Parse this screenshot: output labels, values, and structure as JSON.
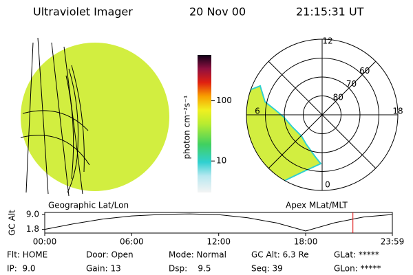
{
  "header": {
    "title": "Ultraviolet Imager",
    "date": "20 Nov 00",
    "time": "21:15:31 UT"
  },
  "left_image": {
    "label": "Geographic Lat/Lon"
  },
  "right_image": {
    "label": "Apex MLat/MLT",
    "mlt_labels": [
      12,
      18,
      6,
      0
    ],
    "mlat_labels": [
      60,
      70,
      80
    ]
  },
  "colorbar": {
    "label": "photon cm⁻²s⁻¹",
    "log": true,
    "clim": [
      3,
      575
    ],
    "ticks": [
      10,
      100
    ]
  },
  "altitude_plot": {
    "type": "line",
    "ylabel": "GC Alt",
    "x": [
      0,
      2,
      4,
      6,
      8,
      10,
      12,
      14,
      16,
      18,
      20,
      22,
      23.98
    ],
    "values": [
      1.8,
      4.5,
      6.8,
      8.3,
      9.0,
      9.3,
      8.9,
      7.4,
      4.9,
      1.0,
      5.0,
      7.8,
      9.0
    ],
    "color": "#000000",
    "xlim": [
      0,
      23.98
    ],
    "ylim": [
      0,
      10
    ],
    "xticks": [
      {
        "value": 0,
        "label": "00:00"
      },
      {
        "value": 6,
        "label": "06:00"
      },
      {
        "value": 12,
        "label": "12:00"
      },
      {
        "value": 18,
        "label": "18:00"
      },
      {
        "value": 23.98,
        "label": "23:59"
      }
    ],
    "yticks": [
      {
        "value": 9,
        "label": "9.0"
      },
      {
        "value": 1.8,
        "label": "1.8"
      }
    ],
    "marker_x": 21.26,
    "marker_color": "#dd0000"
  },
  "status": [
    [
      "Flt: HOME",
      "Door: Open",
      "Mode: Normal",
      "GC Alt: 6.3 Re",
      "GLat: *****"
    ],
    [
      "IP:  9.0",
      "Gain: 13",
      "Dsp:    9.5",
      "Seq: 39",
      "GLon: *****"
    ]
  ]
}
